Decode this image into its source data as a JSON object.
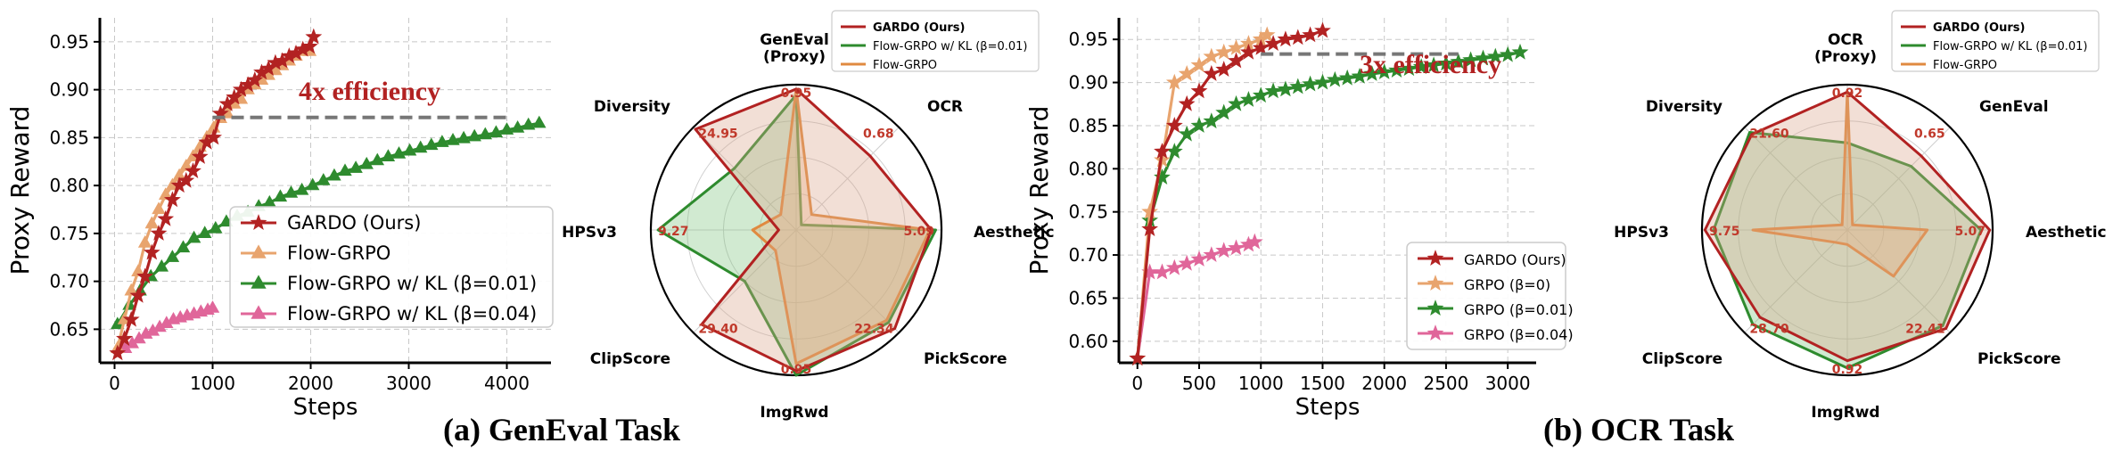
{
  "captions": {
    "left": "(a) GenEval Task",
    "right": "(b) OCR Task"
  },
  "colors": {
    "gardo": "#b22222",
    "flow": "#e8a46e",
    "kl01": "#2e8b2e",
    "kl04": "#e0669a",
    "radar_red": "#b22222",
    "radar_green": "#2e8b2e",
    "radar_orange": "#e08a40",
    "value_text": "#c0392b"
  },
  "chart_data": [
    {
      "type": "line",
      "title": "",
      "xlabel": "Steps",
      "ylabel": "Proxy Reward",
      "xlim": [
        -150,
        4450
      ],
      "ylim": [
        0.615,
        0.975
      ],
      "xticks": [
        0,
        1000,
        2000,
        3000,
        4000
      ],
      "yticks": [
        0.65,
        0.7,
        0.75,
        0.8,
        0.85,
        0.9,
        0.95
      ],
      "ytick_labels": [
        "0.65",
        "0.70",
        "0.75",
        "0.80",
        "0.85",
        "0.90",
        "0.95"
      ],
      "annotation": {
        "text": "4x efficiency",
        "x_start": 1000,
        "x_end": 4000,
        "y": 0.871
      },
      "series": [
        {
          "name": "GARDO (Ours)",
          "color_key": "gardo",
          "marker": "star",
          "x": [
            30,
            100,
            170,
            240,
            310,
            380,
            450,
            520,
            590,
            660,
            730,
            800,
            870,
            940,
            1010,
            1080,
            1150,
            1220,
            1290,
            1360,
            1430,
            1500,
            1570,
            1640,
            1710,
            1780,
            1850,
            1920,
            1990,
            2030
          ],
          "y": [
            0.625,
            0.64,
            0.66,
            0.685,
            0.705,
            0.73,
            0.75,
            0.765,
            0.785,
            0.8,
            0.805,
            0.815,
            0.83,
            0.845,
            0.85,
            0.875,
            0.885,
            0.892,
            0.9,
            0.905,
            0.91,
            0.918,
            0.922,
            0.928,
            0.93,
            0.935,
            0.938,
            0.942,
            0.945,
            0.955
          ]
        },
        {
          "name": "Flow-GRPO",
          "color_key": "flow",
          "marker": "triangle",
          "x": [
            30,
            100,
            170,
            240,
            310,
            380,
            450,
            520,
            590,
            660,
            730,
            800,
            870,
            940,
            1010,
            1080,
            1150,
            1220,
            1290,
            1360,
            1430,
            1500,
            1570,
            1640,
            1710,
            1780,
            1850,
            1920,
            1990
          ],
          "y": [
            0.63,
            0.66,
            0.69,
            0.71,
            0.74,
            0.76,
            0.775,
            0.79,
            0.8,
            0.81,
            0.82,
            0.83,
            0.84,
            0.85,
            0.86,
            0.87,
            0.875,
            0.885,
            0.89,
            0.9,
            0.905,
            0.91,
            0.915,
            0.92,
            0.925,
            0.93,
            0.935,
            0.94,
            0.94
          ]
        },
        {
          "name": "Flow-GRPO w/ KL (β=0.01)",
          "color_key": "kl01",
          "marker": "triangle",
          "x": [
            30,
            150,
            260,
            370,
            480,
            590,
            700,
            810,
            920,
            1030,
            1140,
            1250,
            1360,
            1470,
            1580,
            1690,
            1800,
            1910,
            2020,
            2130,
            2240,
            2350,
            2460,
            2570,
            2680,
            2790,
            2900,
            3010,
            3120,
            3230,
            3340,
            3450,
            3560,
            3670,
            3780,
            3890,
            4000,
            4110,
            4220,
            4330
          ],
          "y": [
            0.655,
            0.675,
            0.69,
            0.705,
            0.715,
            0.725,
            0.735,
            0.745,
            0.75,
            0.755,
            0.762,
            0.768,
            0.772,
            0.778,
            0.782,
            0.788,
            0.792,
            0.795,
            0.8,
            0.805,
            0.81,
            0.815,
            0.818,
            0.822,
            0.826,
            0.83,
            0.833,
            0.836,
            0.839,
            0.842,
            0.845,
            0.847,
            0.849,
            0.851,
            0.853,
            0.855,
            0.858,
            0.86,
            0.863,
            0.865
          ]
        },
        {
          "name": "Flow-GRPO w/ KL (β=0.04)",
          "color_key": "kl04",
          "marker": "triangle",
          "x": [
            40,
            110,
            180,
            250,
            320,
            390,
            460,
            530,
            600,
            670,
            740,
            810,
            880,
            950,
            1000
          ],
          "y": [
            0.63,
            0.63,
            0.635,
            0.64,
            0.645,
            0.648,
            0.652,
            0.656,
            0.66,
            0.662,
            0.664,
            0.666,
            0.668,
            0.67,
            0.672
          ]
        }
      ],
      "legend": {
        "entries": [
          "GARDO (Ours)",
          "Flow-GRPO",
          "Flow-GRPO w/ KL (β=0.01)",
          "Flow-GRPO w/ KL (β=0.04)"
        ],
        "placement": "lower-center"
      }
    },
    {
      "type": "radar",
      "axes": [
        "GenEval\n(Proxy)",
        "OCR",
        "Aesthetic",
        "PickScore",
        "ImgRwd",
        "ClipScore",
        "HPSv3",
        "Diversity"
      ],
      "value_labels": [
        "0.95",
        "0.68",
        "5.09",
        "22.34",
        "0.95",
        "29.40",
        "9.27",
        "24.95"
      ],
      "series": [
        {
          "name": "GARDO (Ours)",
          "color_key": "radar_red",
          "values": [
            0.97,
            0.72,
            0.93,
            0.96,
            0.97,
            0.92,
            0.12,
            0.98
          ]
        },
        {
          "name": "Flow-GRPO w/ KL (β=0.01)",
          "color_key": "radar_green",
          "values": [
            0.93,
            0.05,
            0.96,
            0.9,
            1.0,
            0.5,
            0.95,
            0.6
          ]
        },
        {
          "name": "Flow-GRPO",
          "color_key": "radar_orange",
          "values": [
            0.97,
            0.15,
            0.92,
            0.88,
            0.92,
            0.2,
            0.3,
            0.15
          ]
        }
      ],
      "legend": {
        "entries": [
          "GARDO (Ours)",
          "Flow-GRPO w/ KL (β=0.01)",
          "Flow-GRPO"
        ],
        "placement": "top-right"
      }
    },
    {
      "type": "line",
      "title": "",
      "xlabel": "Steps",
      "ylabel": "Proxy Reward",
      "xlim": [
        -150,
        3230
      ],
      "ylim": [
        0.575,
        0.975
      ],
      "xticks": [
        0,
        500,
        1000,
        1500,
        2000,
        2500,
        3000
      ],
      "yticks": [
        0.6,
        0.65,
        0.7,
        0.75,
        0.8,
        0.85,
        0.9,
        0.95
      ],
      "ytick_labels": [
        "0.60",
        "0.65",
        "0.70",
        "0.75",
        "0.80",
        "0.85",
        "0.90",
        "0.95"
      ],
      "annotation": {
        "text": "3x efficiency",
        "x_start": 1000,
        "x_end": 2600,
        "y": 0.933
      },
      "series": [
        {
          "name": "GARDO (Ours)",
          "color_key": "gardo",
          "marker": "star",
          "x": [
            0,
            100,
            200,
            300,
            400,
            500,
            600,
            700,
            800,
            900,
            1000,
            1100,
            1200,
            1300,
            1400,
            1500
          ],
          "y": [
            0.58,
            0.73,
            0.82,
            0.85,
            0.875,
            0.89,
            0.91,
            0.915,
            0.925,
            0.935,
            0.94,
            0.945,
            0.95,
            0.952,
            0.955,
            0.96
          ]
        },
        {
          "name": "GRPO (β=0)",
          "color_key": "flow",
          "marker": "star",
          "x": [
            0,
            100,
            200,
            300,
            400,
            500,
            600,
            700,
            800,
            900,
            1000,
            1050
          ],
          "y": [
            0.58,
            0.75,
            0.81,
            0.9,
            0.91,
            0.92,
            0.93,
            0.935,
            0.94,
            0.945,
            0.95,
            0.955
          ]
        },
        {
          "name": "GRPO (β=0.01)",
          "color_key": "kl01",
          "marker": "star",
          "x": [
            0,
            100,
            200,
            300,
            400,
            500,
            600,
            700,
            800,
            900,
            1000,
            1100,
            1200,
            1300,
            1400,
            1500,
            1600,
            1700,
            1800,
            1900,
            2000,
            2100,
            2200,
            2300,
            2400,
            2500,
            2600,
            2700,
            2800,
            2900,
            3000,
            3100
          ],
          "y": [
            0.58,
            0.74,
            0.79,
            0.82,
            0.84,
            0.85,
            0.855,
            0.865,
            0.875,
            0.88,
            0.885,
            0.89,
            0.892,
            0.895,
            0.898,
            0.9,
            0.903,
            0.905,
            0.907,
            0.91,
            0.912,
            0.914,
            0.916,
            0.918,
            0.92,
            0.922,
            0.924,
            0.926,
            0.928,
            0.93,
            0.932,
            0.935
          ]
        },
        {
          "name": "GRPO (β=0.04)",
          "color_key": "kl04",
          "marker": "star",
          "x": [
            0,
            100,
            200,
            300,
            400,
            500,
            600,
            700,
            800,
            900,
            950
          ],
          "y": [
            0.58,
            0.68,
            0.68,
            0.685,
            0.69,
            0.695,
            0.7,
            0.705,
            0.708,
            0.712,
            0.715
          ]
        }
      ],
      "legend": {
        "entries": [
          "GARDO (Ours)",
          "GRPO (β=0)",
          "GRPO (β=0.01)",
          "GRPO (β=0.04)"
        ],
        "placement": "lower-right"
      }
    },
    {
      "type": "radar",
      "axes": [
        "OCR\n(Proxy)",
        "GenEval",
        "Aesthetic",
        "PickScore",
        "ImgRwd",
        "ClipScore",
        "HPSv3",
        "Diversity"
      ],
      "value_labels": [
        "0.92",
        "0.65",
        "5.07",
        "22.41",
        "0.92",
        "28.70",
        "9.75",
        "21.60"
      ],
      "series": [
        {
          "name": "GARDO (Ours)",
          "color_key": "radar_red",
          "values": [
            0.95,
            0.72,
            0.98,
            0.96,
            0.9,
            0.85,
            0.98,
            0.93
          ]
        },
        {
          "name": "Flow-GRPO w/ KL (β=0.01)",
          "color_key": "radar_green",
          "values": [
            0.6,
            0.62,
            0.92,
            0.93,
            0.95,
            0.92,
            0.92,
            0.95
          ]
        },
        {
          "name": "Flow-GRPO",
          "color_key": "radar_orange",
          "values": [
            0.95,
            0.05,
            0.55,
            0.45,
            0.1,
            0.12,
            0.65,
            0.05
          ]
        }
      ],
      "legend": {
        "entries": [
          "GARDO (Ours)",
          "Flow-GRPO w/ KL (β=0.01)",
          "Flow-GRPO"
        ],
        "placement": "top-right"
      }
    }
  ]
}
